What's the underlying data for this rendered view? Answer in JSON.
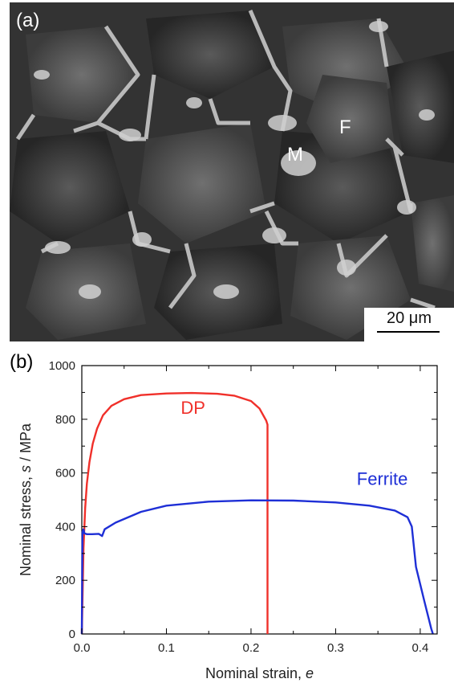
{
  "figure": {
    "panel_a_label": "(a)",
    "panel_b_label": "(b)",
    "micrograph": {
      "phase_ferrite_label": "F",
      "phase_martensite_label": "M",
      "scale_bar_label": "20 μm"
    }
  },
  "chart_data": {
    "type": "line",
    "xlabel_main": "Nominal strain, ",
    "xlabel_symbol": "e",
    "ylabel_main": "Nominal stress, ",
    "ylabel_symbol": "s",
    "ylabel_unit": " / MPa",
    "xlim": [
      0.0,
      0.42
    ],
    "ylim": [
      0,
      1000
    ],
    "xticks": [
      0.0,
      0.1,
      0.2,
      0.3,
      0.4
    ],
    "xtick_labels": [
      "0.0",
      "0.1",
      "0.2",
      "0.3",
      "0.4"
    ],
    "yticks": [
      0,
      200,
      400,
      600,
      800,
      1000
    ],
    "ytick_labels": [
      "0",
      "200",
      "400",
      "600",
      "800",
      "1000"
    ],
    "grid": false,
    "series": [
      {
        "name": "DP",
        "color": "#f0302a",
        "x": [
          0.0,
          0.002,
          0.004,
          0.006,
          0.009,
          0.013,
          0.018,
          0.025,
          0.035,
          0.05,
          0.07,
          0.1,
          0.13,
          0.16,
          0.18,
          0.2,
          0.21,
          0.218,
          0.2195,
          0.2195
        ],
        "y": [
          0,
          320,
          470,
          560,
          640,
          710,
          765,
          815,
          850,
          875,
          890,
          896,
          898,
          895,
          888,
          868,
          840,
          795,
          780,
          0
        ]
      },
      {
        "name": "Ferrite",
        "color": "#1e2fd6",
        "x": [
          0.0,
          0.0008,
          0.002,
          0.003,
          0.006,
          0.012,
          0.02,
          0.024,
          0.027,
          0.04,
          0.07,
          0.1,
          0.15,
          0.2,
          0.25,
          0.3,
          0.34,
          0.37,
          0.385,
          0.39,
          0.395,
          0.405,
          0.413,
          0.415
        ],
        "y": [
          0,
          380,
          390,
          375,
          372,
          372,
          373,
          365,
          390,
          415,
          455,
          478,
          493,
          498,
          497,
          490,
          478,
          460,
          435,
          400,
          250,
          120,
          20,
          0
        ]
      }
    ]
  }
}
